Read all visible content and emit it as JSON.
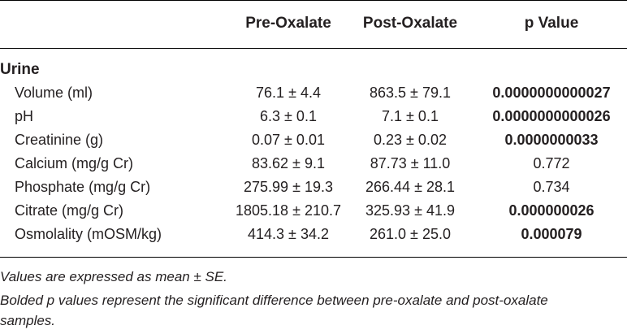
{
  "header": {
    "col_pre": "Pre-Oxalate",
    "col_post": "Post-Oxalate",
    "col_p": "p Value"
  },
  "section": "Urine",
  "rows": [
    {
      "label": "Volume (ml)",
      "pre": "76.1 ± 4.4",
      "post": "863.5 ± 79.1",
      "p": "0.0000000000027",
      "bold": true
    },
    {
      "label": "pH",
      "pre": "6.3 ± 0.1",
      "post": "7.1 ± 0.1",
      "p": "0.0000000000026",
      "bold": true
    },
    {
      "label": "Creatinine (g)",
      "pre": "0.07 ± 0.01",
      "post": "0.23 ± 0.02",
      "p": "0.0000000033",
      "bold": true
    },
    {
      "label": "Calcium (mg/g Cr)",
      "pre": "83.62 ± 9.1",
      "post": "87.73 ± 11.0",
      "p": "0.772",
      "bold": false
    },
    {
      "label": "Phosphate (mg/g Cr)",
      "pre": "275.99 ± 19.3",
      "post": "266.44 ± 28.1",
      "p": "0.734",
      "bold": false
    },
    {
      "label": "Citrate (mg/g Cr)",
      "pre": "1805.18 ± 210.7",
      "post": "325.93 ± 41.9",
      "p": "0.000000026",
      "bold": true
    },
    {
      "label": "Osmolality (mOSM/kg)",
      "pre": "414.3 ± 34.2",
      "post": "261.0 ± 25.0",
      "p": "0.000079",
      "bold": true
    }
  ],
  "notes": {
    "line1": "Values are expressed as mean ± SE.",
    "line2": "Bolded p values represent the significant difference between pre-oxalate and post-oxalate",
    "line3": "samples."
  }
}
